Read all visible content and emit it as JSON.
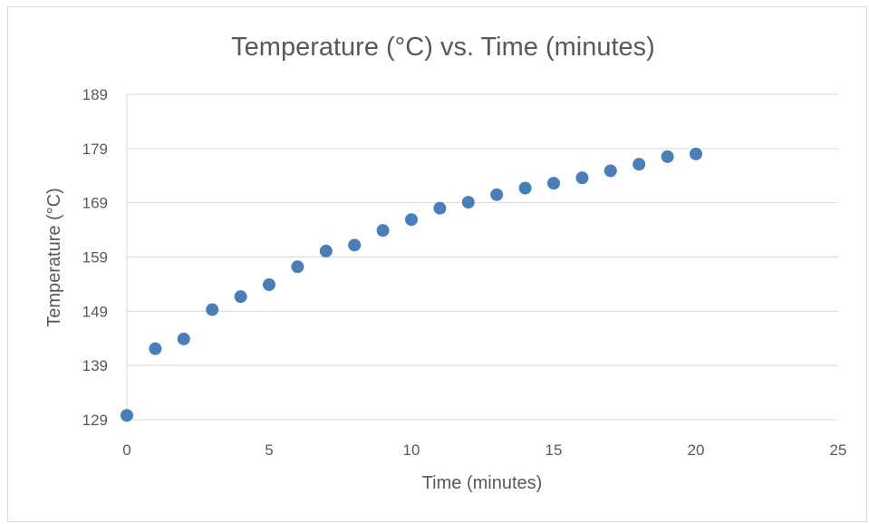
{
  "chart_data": {
    "type": "scatter",
    "title": "Temperature (°C) vs. Time (minutes)",
    "xlabel": "Time (minutes)",
    "ylabel": "Temperature (°C)",
    "xlim": [
      0,
      25
    ],
    "ylim": [
      129,
      189
    ],
    "xticks": [
      0,
      5,
      10,
      15,
      20,
      25
    ],
    "yticks": [
      129,
      139,
      149,
      159,
      169,
      179,
      189
    ],
    "grid": "horizontal",
    "legend": "none",
    "marker_color": "#4a7ebb",
    "series": [
      {
        "x": [
          0,
          1,
          2,
          3,
          4,
          5,
          6,
          7,
          8,
          9,
          10,
          11,
          12,
          13,
          14,
          15,
          16,
          17,
          18,
          19,
          20
        ],
        "y": [
          129.8,
          142.1,
          143.9,
          149.3,
          151.7,
          153.9,
          157.2,
          160.1,
          161.2,
          163.9,
          165.9,
          168.0,
          169.1,
          170.5,
          171.7,
          172.6,
          173.6,
          174.9,
          176.1,
          177.5,
          178.0
        ]
      }
    ]
  }
}
